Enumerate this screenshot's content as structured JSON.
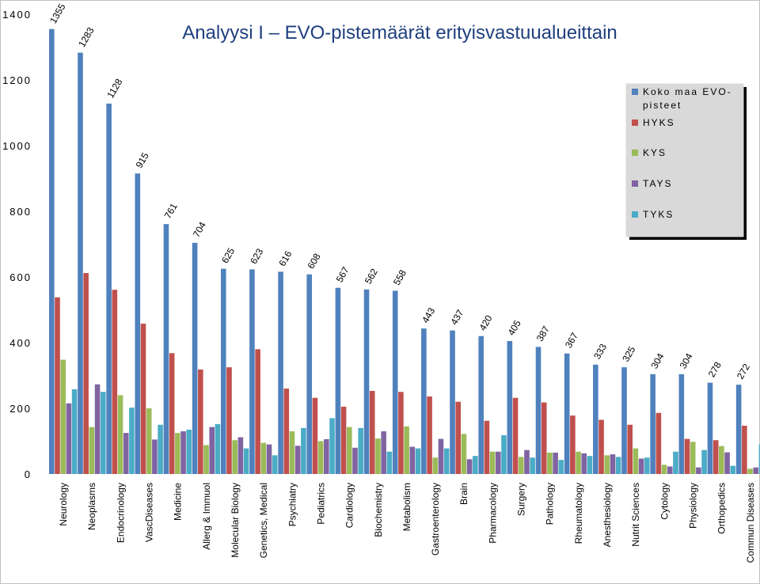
{
  "chart_data": {
    "type": "bar",
    "title": "Analyysi I – EVO-pistemäärät erityisvastuualueittain",
    "xlabel": "",
    "ylabel": "",
    "ylim": [
      0,
      1400
    ],
    "yticks": [
      0,
      200,
      400,
      600,
      800,
      1000,
      1200,
      1400
    ],
    "grid": false,
    "legend_position": "right",
    "categories": [
      "Neurology",
      "Neoplasms",
      "Endocrinology",
      "VascDiseases",
      "Medicine",
      "Allerg & Immuol",
      "Molecular Biology",
      "Genetics, Medical",
      "Psychiatry",
      "Pediatrics",
      "Cardiology",
      "Biochemistry",
      "Metabolism",
      "Gastroenterology",
      "Brain",
      "Pharmacology",
      "Surgery",
      "Pathology",
      "Rheumatology",
      "Anesthesiology",
      "Nutrit Sciences",
      "Cytology",
      "Physiology",
      "Orthopedics",
      "Commun Diseases"
    ],
    "series": [
      {
        "name": "Koko maa EVO-pisteet",
        "color": "#4f81bd",
        "values": [
          1355,
          1283,
          1128,
          915,
          761,
          704,
          625,
          623,
          616,
          608,
          567,
          562,
          558,
          443,
          437,
          420,
          405,
          387,
          367,
          333,
          325,
          304,
          304,
          278,
          272
        ]
      },
      {
        "name": "HYKS",
        "color": "#c0504d",
        "values": [
          538,
          612,
          561,
          458,
          368,
          318,
          325,
          380,
          260,
          232,
          205,
          253,
          250,
          236,
          220,
          162,
          232,
          218,
          178,
          165,
          150,
          186,
          107,
          103,
          147
        ]
      },
      {
        "name": "KYS",
        "color": "#9bbb59",
        "values": [
          348,
          143,
          240,
          200,
          125,
          88,
          103,
          95,
          130,
          100,
          143,
          108,
          145,
          50,
          122,
          68,
          52,
          65,
          68,
          57,
          78,
          28,
          98,
          85,
          16
        ]
      },
      {
        "name": "TAYS",
        "color": "#8064a2",
        "values": [
          215,
          273,
          125,
          105,
          130,
          143,
          112,
          90,
          86,
          106,
          80,
          130,
          83,
          107,
          45,
          68,
          73,
          65,
          63,
          60,
          47,
          23,
          20,
          66,
          20
        ]
      },
      {
        "name": "TYKS",
        "color": "#4bacc6",
        "values": [
          258,
          250,
          202,
          150,
          135,
          152,
          78,
          57,
          140,
          170,
          140,
          68,
          78,
          78,
          55,
          118,
          50,
          43,
          55,
          52,
          50,
          68,
          73,
          25,
          90
        ]
      }
    ],
    "data_labels": [
      "1355",
      "1283",
      "1128",
      "915",
      "761",
      "704",
      "625",
      "623",
      "616",
      "608",
      "567",
      "562",
      "558",
      "443",
      "437",
      "420",
      "405",
      "387",
      "367",
      "333",
      "325",
      "304",
      "304",
      "278",
      "272"
    ],
    "legend": {
      "label_lines": [
        [
          "Koko maa EVO-",
          "pisteet"
        ],
        [
          "HYKS"
        ],
        [
          "KYS"
        ],
        [
          "TAYS"
        ],
        [
          "TYKS"
        ]
      ]
    }
  }
}
